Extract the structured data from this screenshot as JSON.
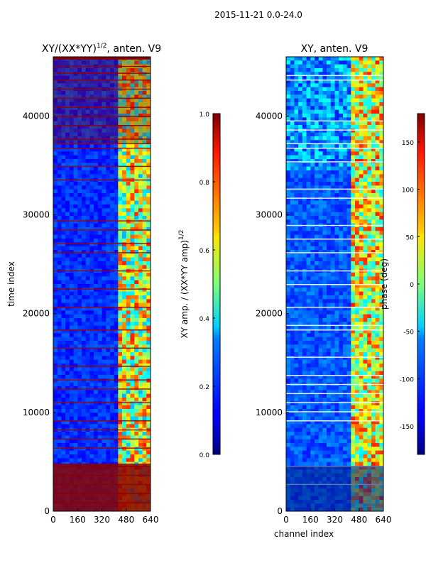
{
  "suptitle": "2015-11-21 0.0-24.0",
  "chart_data": [
    {
      "type": "heatmap",
      "title_main": "XY/(XX*YY)",
      "title_sup": "1/2",
      "title_rest": ", anten. V9",
      "xlabel": "",
      "ylabel": "time index",
      "xlim": [
        0,
        640
      ],
      "ylim": [
        0,
        46000
      ],
      "xticks": [
        "0",
        "160",
        "320",
        "480",
        "640"
      ],
      "yticks": [
        "0",
        "10000",
        "20000",
        "30000",
        "40000"
      ],
      "colorbar": {
        "label_main": "XY amp. / (XX*YY amp)",
        "label_sup": "1/2",
        "range": [
          0,
          1
        ],
        "ticks": [
          "0.0",
          "0.2",
          "0.4",
          "0.6",
          "0.8",
          "1.0"
        ],
        "colormap": "jet"
      }
    },
    {
      "type": "heatmap",
      "title": "XY, anten. V9",
      "xlabel": "channel index",
      "ylabel": "",
      "xlim": [
        0,
        640
      ],
      "ylim": [
        0,
        46000
      ],
      "xticks": [
        "0",
        "160",
        "320",
        "480",
        "640"
      ],
      "yticks": [
        "0",
        "10000",
        "20000",
        "30000",
        "40000"
      ],
      "colorbar": {
        "label": "phase (deg)",
        "range": [
          -180,
          180
        ],
        "ticks": [
          "-150",
          "-100",
          "-50",
          "0",
          "50",
          "100",
          "150"
        ],
        "colormap": "jet"
      }
    }
  ]
}
